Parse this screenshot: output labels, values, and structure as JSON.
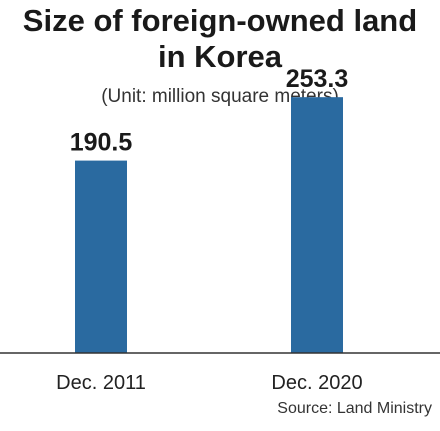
{
  "title_line1": "Size of foreign-owned land",
  "title_line2": "in Korea",
  "subtitle": "(Unit: million square meters)",
  "source": "Source: Land Ministry",
  "chart_data": {
    "type": "bar",
    "title": "Size of foreign-owned land in Korea",
    "subtitle": "(Unit: million square meters)",
    "categories": [
      "Dec. 2011",
      "Dec. 2020"
    ],
    "values": [
      190.5,
      253.3
    ],
    "value_labels": [
      "190.5",
      "253.3"
    ],
    "ylim": [
      0,
      300
    ],
    "grid": false,
    "bar_color": "#2a6aa0",
    "source": "Source: Land Ministry"
  }
}
